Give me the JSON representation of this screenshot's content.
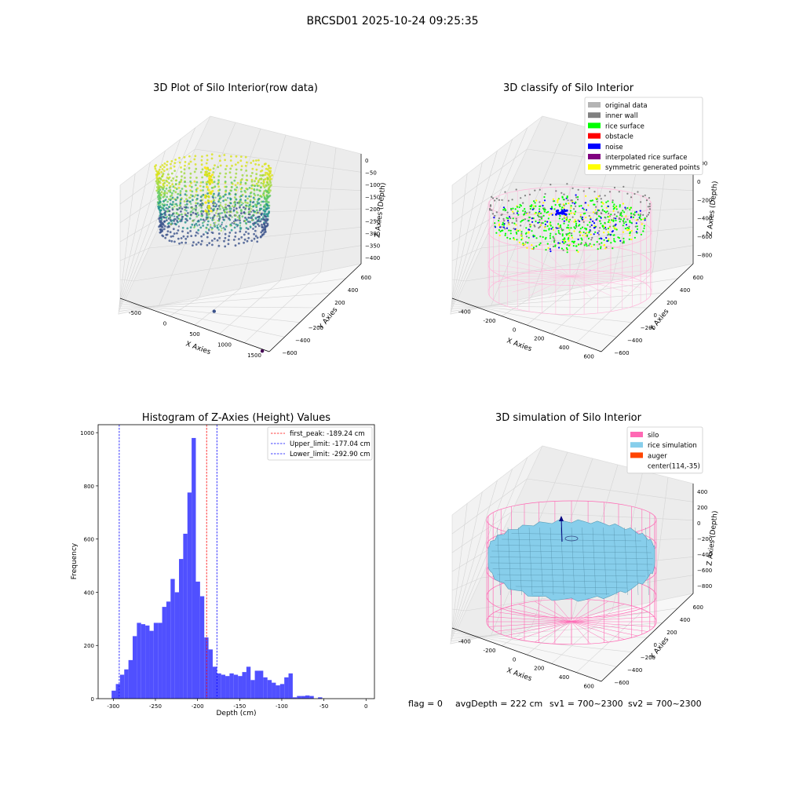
{
  "figure": {
    "suptitle": "BRCSD01 2025-10-24 09:25:35",
    "status": {
      "flag": "flag = 0",
      "avg_depth": "avgDepth = 222 cm",
      "sv1": "sv1 = 700~2300",
      "sv2": "sv2 = 700~2300"
    }
  },
  "chart_data": [
    {
      "type": "scatter3d",
      "title": "3D Plot of Silo Interior(row data)",
      "xlabel": "X Axies",
      "ylabel": "Y Axies",
      "zlabel": "Z Axies (Depth)",
      "x_ticks": [
        "-500",
        "0",
        "500",
        "1000",
        "1500"
      ],
      "y_ticks": [
        "600",
        "400",
        "200",
        "0",
        "−200",
        "−400",
        "−600"
      ],
      "z_ticks": [
        "0",
        "−50",
        "−100",
        "−150",
        "−200",
        "−250",
        "−300",
        "−350",
        "−400"
      ],
      "xlim": [
        -600,
        1600
      ],
      "ylim": [
        -650,
        650
      ],
      "zlim": [
        -420,
        20
      ],
      "colormap": "viridis",
      "outliers": [
        {
          "x": 1500,
          "y": -500,
          "z": -420,
          "color": "#440154"
        },
        {
          "x": 800,
          "y": 100,
          "z": -300,
          "color": "#3b528b"
        }
      ]
    },
    {
      "type": "scatter3d",
      "title": "3D classify of Silo Interior",
      "xlabel": "X Axies",
      "ylabel": "Y Axies",
      "zlabel": "Z Axies (Depth)",
      "x_ticks": [
        "-400",
        "-200",
        "0",
        "200",
        "400",
        "600"
      ],
      "y_ticks": [
        "600",
        "400",
        "200",
        "0",
        "−200",
        "−400",
        "−600"
      ],
      "z_ticks": [
        "200",
        "0",
        "−200",
        "−400",
        "−600",
        "−800"
      ],
      "legend": [
        {
          "label": "original data",
          "color": "#b4b4b4"
        },
        {
          "label": "inner wall",
          "color": "#808080"
        },
        {
          "label": "rice surface",
          "color": "#00ff00"
        },
        {
          "label": "obstacle",
          "color": "#ff0000"
        },
        {
          "label": "noise",
          "color": "#0000ff"
        },
        {
          "label": "interpolated rice surface",
          "color": "#800080"
        },
        {
          "label": "symmetric generated points",
          "color": "#ffff00"
        }
      ],
      "legend_loc": "upper right"
    },
    {
      "type": "bar",
      "title": "Histogram of Z-Axies (Height) Values",
      "xlabel": "Depth (cm)",
      "ylabel": "Frequency",
      "xlim": [
        -318,
        10
      ],
      "ylim": [
        0,
        1030
      ],
      "x_ticks": [
        -300,
        -250,
        -200,
        -150,
        -100,
        -50,
        0
      ],
      "y_ticks": [
        0,
        200,
        400,
        600,
        800,
        1000
      ],
      "bin_start": -302,
      "bin_width": 5,
      "values": [
        30,
        55,
        90,
        110,
        145,
        235,
        285,
        280,
        275,
        255,
        285,
        285,
        345,
        365,
        450,
        400,
        525,
        620,
        775,
        980,
        440,
        385,
        230,
        185,
        120,
        95,
        90,
        85,
        95,
        90,
        85,
        100,
        120,
        70,
        105,
        105,
        80,
        70,
        60,
        50,
        55,
        80,
        95,
        5,
        10,
        10,
        12,
        10,
        0,
        5
      ],
      "bar_color": "#5050ff",
      "vlines": [
        {
          "x": -189.24,
          "color": "#ff0000",
          "label": "first_peak: -189.24 cm"
        },
        {
          "x": -177.04,
          "color": "#0000ff",
          "label": "Upper_limit: -177.04 cm"
        },
        {
          "x": -292.9,
          "color": "#0000ff",
          "label": "Lower_limit: -292.90 cm"
        }
      ],
      "legend_loc": "upper right"
    },
    {
      "type": "surface3d",
      "title": "3D simulation of Silo Interior",
      "xlabel": "X Axies",
      "ylabel": "Y Axies",
      "zlabel": "Z Axies (Depth)",
      "x_ticks": [
        "-400",
        "-200",
        "0",
        "200",
        "400",
        "600"
      ],
      "y_ticks": [
        "600",
        "400",
        "200",
        "0",
        "−200",
        "−400",
        "−600"
      ],
      "z_ticks": [
        "400",
        "200",
        "0",
        "−200",
        "−400",
        "−600",
        "−800"
      ],
      "legend": [
        {
          "label": "silo",
          "color": "#ff69b4"
        },
        {
          "label": "rice simulation",
          "color": "#87ceeb"
        },
        {
          "label": "auger",
          "color": "#ff4500"
        },
        {
          "label": "center(114,-35)",
          "color": ""
        }
      ],
      "legend_loc": "upper right"
    }
  ]
}
